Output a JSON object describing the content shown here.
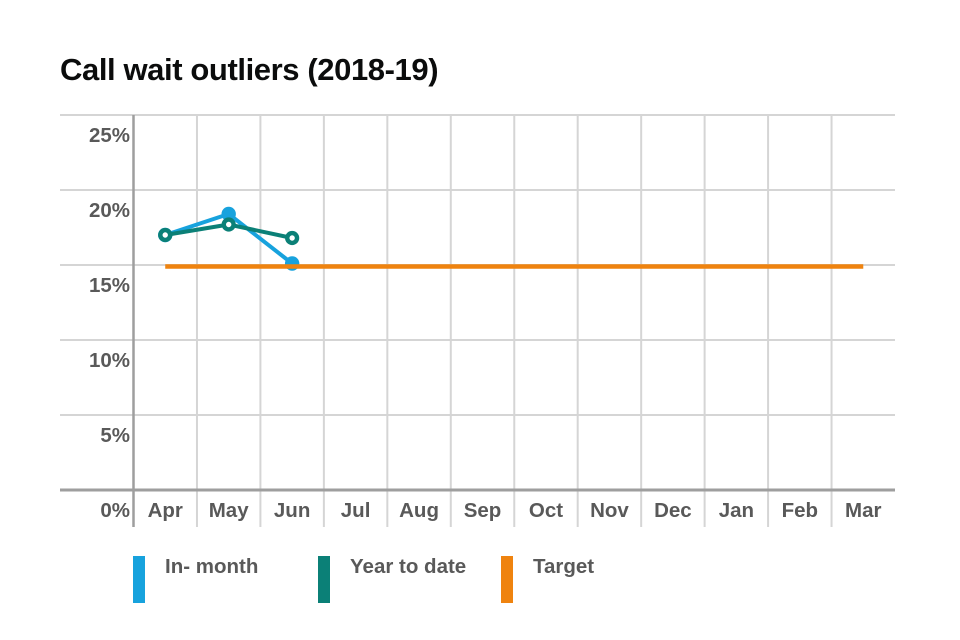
{
  "title": "Call wait outliers (2018-19)",
  "colors": {
    "title_text": "#0b0c0c",
    "label_text": "#595959",
    "gridline": "#d5d5d5",
    "axis_line": "#9e9e9e",
    "in_month": "#17a2dd",
    "year_to_date": "#0b8077",
    "target": "#ef830f",
    "background": "#ffffff"
  },
  "chart_data": {
    "type": "line",
    "title": "Call wait outliers (2018-19)",
    "categories": [
      "Apr",
      "May",
      "Jun",
      "Jul",
      "Aug",
      "Sep",
      "Oct",
      "Nov",
      "Dec",
      "Jan",
      "Feb",
      "Mar"
    ],
    "y_tick_labels": [
      "0%",
      "5%",
      "10%",
      "15%",
      "20%",
      "25%"
    ],
    "y_tick_values": [
      0,
      5,
      10,
      15,
      20,
      25
    ],
    "ylim": [
      0,
      25
    ],
    "grid": true,
    "legend_position": "bottom",
    "series": [
      {
        "name": "In- month",
        "type": "line",
        "marker": "filled-circle",
        "color": "#17a2dd",
        "x": [
          "Apr",
          "May",
          "Jun"
        ],
        "values": [
          17.0,
          18.4,
          15.1
        ]
      },
      {
        "name": "Year to date",
        "type": "line",
        "marker": "open-circle",
        "color": "#0b8077",
        "x": [
          "Apr",
          "May",
          "Jun"
        ],
        "values": [
          17.0,
          17.7,
          16.8
        ]
      },
      {
        "name": "Target",
        "type": "hline",
        "color": "#ef830f",
        "value": 15,
        "from": "Apr",
        "to": "Mar"
      }
    ]
  }
}
